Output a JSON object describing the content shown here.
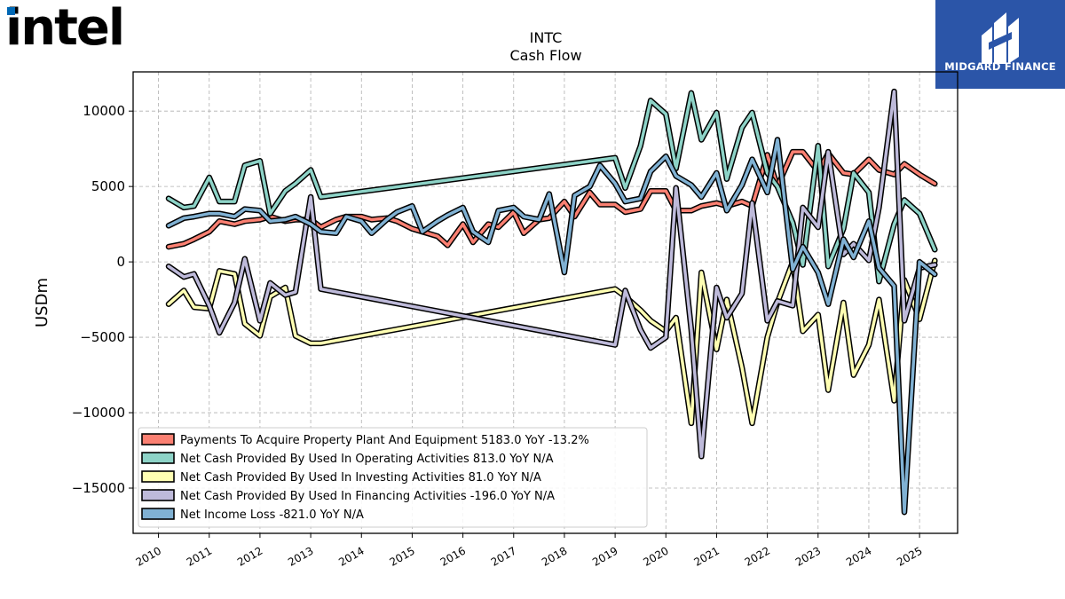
{
  "brand": {
    "name": "intel",
    "accent": "#0068b5"
  },
  "publisher": {
    "name": "MIDGARD FINANCE",
    "bg": "#2b55a8"
  },
  "chart_data": {
    "type": "line",
    "title": "INTC",
    "subtitle": "Cash Flow",
    "ylabel": "USDm",
    "xlabel": "",
    "xlim": [
      2009.5,
      2025.75
    ],
    "ylim": [
      -18000,
      12600
    ],
    "yticks": [
      10000,
      5000,
      0,
      -5000,
      -10000,
      -15000
    ],
    "ytick_labels": [
      "10000",
      "5000",
      "0",
      "−5000",
      "−10000",
      "−15000"
    ],
    "xticks": [
      2010,
      2011,
      2012,
      2013,
      2014,
      2015,
      2016,
      2017,
      2018,
      2019,
      2020,
      2021,
      2022,
      2023,
      2024,
      2025
    ],
    "xtick_labels": [
      "2010",
      "2011",
      "2012",
      "2013",
      "2014",
      "2015",
      "2016",
      "2017",
      "2018",
      "2019",
      "2020",
      "2021",
      "2022",
      "2023",
      "2024",
      "2025"
    ],
    "grid": true,
    "legend_position": "lower-left",
    "series": [
      {
        "name": "Payments To Acquire Property Plant And Equipment",
        "legend": "Payments To Acquire Property Plant And Equipment  5183.0 YoY -13.2%",
        "color": "#fb8072",
        "points": [
          [
            2010.2,
            1000
          ],
          [
            2010.5,
            1200
          ],
          [
            2010.7,
            1500
          ],
          [
            2011.0,
            2000
          ],
          [
            2011.2,
            2700
          ],
          [
            2011.5,
            2500
          ],
          [
            2011.7,
            2700
          ],
          [
            2012.0,
            2800
          ],
          [
            2012.2,
            3000
          ],
          [
            2012.5,
            2700
          ],
          [
            2012.7,
            2800
          ],
          [
            2013.0,
            2800
          ],
          [
            2013.2,
            2300
          ],
          [
            2013.5,
            2800
          ],
          [
            2013.7,
            3000
          ],
          [
            2014.0,
            3000
          ],
          [
            2014.2,
            2800
          ],
          [
            2014.5,
            2900
          ],
          [
            2014.7,
            2700
          ],
          [
            2015.0,
            2200
          ],
          [
            2015.2,
            2000
          ],
          [
            2015.5,
            1700
          ],
          [
            2015.7,
            1100
          ],
          [
            2016.0,
            2500
          ],
          [
            2016.2,
            1300
          ],
          [
            2016.5,
            2500
          ],
          [
            2016.7,
            2300
          ],
          [
            2017.0,
            3300
          ],
          [
            2017.2,
            1900
          ],
          [
            2017.5,
            2800
          ],
          [
            2017.7,
            2900
          ],
          [
            2018.0,
            4000
          ],
          [
            2018.2,
            3000
          ],
          [
            2018.5,
            4600
          ],
          [
            2018.7,
            3800
          ],
          [
            2019.0,
            3800
          ],
          [
            2019.2,
            3300
          ],
          [
            2019.5,
            3500
          ],
          [
            2019.7,
            4700
          ],
          [
            2020.0,
            4700
          ],
          [
            2020.2,
            3400
          ],
          [
            2020.5,
            3400
          ],
          [
            2020.7,
            3700
          ],
          [
            2021.0,
            3900
          ],
          [
            2021.2,
            3700
          ],
          [
            2021.5,
            4000
          ],
          [
            2021.7,
            3700
          ],
          [
            2022.0,
            7100
          ],
          [
            2022.2,
            5000
          ],
          [
            2022.5,
            7300
          ],
          [
            2022.7,
            7300
          ],
          [
            2023.0,
            6000
          ],
          [
            2023.2,
            7200
          ],
          [
            2023.5,
            5900
          ],
          [
            2023.7,
            5800
          ],
          [
            2024.0,
            6800
          ],
          [
            2024.2,
            6100
          ],
          [
            2024.5,
            5800
          ],
          [
            2024.7,
            6500
          ],
          [
            2025.0,
            5800
          ],
          [
            2025.3,
            5183
          ]
        ]
      },
      {
        "name": "Net Cash Provided By Used In Operating Activities",
        "legend": "Net Cash Provided By Used In Operating Activities  813.0 YoY N/A",
        "color": "#8dd3c7",
        "points": [
          [
            2010.2,
            4200
          ],
          [
            2010.5,
            3600
          ],
          [
            2010.7,
            3700
          ],
          [
            2011.0,
            5600
          ],
          [
            2011.2,
            4000
          ],
          [
            2011.5,
            4000
          ],
          [
            2011.7,
            6400
          ],
          [
            2012.0,
            6700
          ],
          [
            2012.2,
            3200
          ],
          [
            2012.5,
            4700
          ],
          [
            2012.7,
            5200
          ],
          [
            2013.0,
            6100
          ],
          [
            2013.2,
            4300
          ],
          [
            2019.0,
            6900
          ],
          [
            2019.2,
            4900
          ],
          [
            2019.5,
            7700
          ],
          [
            2019.7,
            10700
          ],
          [
            2020.0,
            9800
          ],
          [
            2020.2,
            6200
          ],
          [
            2020.5,
            11200
          ],
          [
            2020.7,
            8100
          ],
          [
            2021.0,
            9900
          ],
          [
            2021.2,
            5500
          ],
          [
            2021.5,
            8900
          ],
          [
            2021.7,
            9900
          ],
          [
            2022.0,
            5900
          ],
          [
            2022.2,
            5000
          ],
          [
            2022.5,
            2600
          ],
          [
            2022.7,
            -200
          ],
          [
            2023.0,
            7700
          ],
          [
            2023.2,
            -300
          ],
          [
            2023.5,
            2200
          ],
          [
            2023.7,
            5900
          ],
          [
            2024.0,
            4600
          ],
          [
            2024.2,
            -1300
          ],
          [
            2024.5,
            2500
          ],
          [
            2024.7,
            4100
          ],
          [
            2025.0,
            3200
          ],
          [
            2025.3,
            813
          ]
        ]
      },
      {
        "name": "Net Cash Provided By Used In Investing Activities",
        "legend": "Net Cash Provided By Used In Investing Activities  81.0 YoY N/A",
        "color": "#ffffb3",
        "points": [
          [
            2010.2,
            -2800
          ],
          [
            2010.5,
            -1900
          ],
          [
            2010.7,
            -3000
          ],
          [
            2011.0,
            -3100
          ],
          [
            2011.2,
            -600
          ],
          [
            2011.5,
            -800
          ],
          [
            2011.7,
            -4100
          ],
          [
            2012.0,
            -4900
          ],
          [
            2012.2,
            -2300
          ],
          [
            2012.5,
            -1700
          ],
          [
            2012.7,
            -4900
          ],
          [
            2013.0,
            -5400
          ],
          [
            2013.2,
            -5400
          ],
          [
            2019.0,
            -1800
          ],
          [
            2019.2,
            -2300
          ],
          [
            2019.5,
            -3200
          ],
          [
            2019.7,
            -3900
          ],
          [
            2020.0,
            -4600
          ],
          [
            2020.2,
            -3700
          ],
          [
            2020.5,
            -10700
          ],
          [
            2020.7,
            -700
          ],
          [
            2021.0,
            -5800
          ],
          [
            2021.2,
            -2500
          ],
          [
            2021.5,
            -7000
          ],
          [
            2021.7,
            -10700
          ],
          [
            2022.0,
            -5000
          ],
          [
            2022.2,
            -2700
          ],
          [
            2022.5,
            0
          ],
          [
            2022.7,
            -4600
          ],
          [
            2023.0,
            -3500
          ],
          [
            2023.2,
            -8500
          ],
          [
            2023.5,
            -2700
          ],
          [
            2023.7,
            -7500
          ],
          [
            2024.0,
            -5500
          ],
          [
            2024.2,
            -2500
          ],
          [
            2024.5,
            -9200
          ],
          [
            2024.7,
            -1200
          ],
          [
            2025.0,
            -3800
          ],
          [
            2025.3,
            81
          ]
        ]
      },
      {
        "name": "Net Cash Provided By Used In Financing Activities",
        "legend": "Net Cash Provided By Used In Financing Activities  -196.0 YoY N/A",
        "color": "#bebada",
        "points": [
          [
            2010.2,
            -300
          ],
          [
            2010.5,
            -1000
          ],
          [
            2010.7,
            -800
          ],
          [
            2011.0,
            -2900
          ],
          [
            2011.2,
            -4700
          ],
          [
            2011.5,
            -2700
          ],
          [
            2011.7,
            200
          ],
          [
            2012.0,
            -3900
          ],
          [
            2012.2,
            -1400
          ],
          [
            2012.5,
            -2200
          ],
          [
            2012.7,
            -2000
          ],
          [
            2013.0,
            4300
          ],
          [
            2013.2,
            -1800
          ],
          [
            2019.0,
            -5500
          ],
          [
            2019.2,
            -1900
          ],
          [
            2019.5,
            -4500
          ],
          [
            2019.7,
            -5700
          ],
          [
            2020.0,
            -5000
          ],
          [
            2020.2,
            4900
          ],
          [
            2020.5,
            -4500
          ],
          [
            2020.7,
            -12900
          ],
          [
            2021.0,
            -1700
          ],
          [
            2021.2,
            -3700
          ],
          [
            2021.5,
            -2100
          ],
          [
            2021.7,
            3900
          ],
          [
            2022.0,
            -3900
          ],
          [
            2022.2,
            -2600
          ],
          [
            2022.5,
            -2900
          ],
          [
            2022.7,
            3600
          ],
          [
            2023.0,
            2300
          ],
          [
            2023.2,
            7300
          ],
          [
            2023.5,
            500
          ],
          [
            2023.7,
            1200
          ],
          [
            2024.0,
            100
          ],
          [
            2024.2,
            3600
          ],
          [
            2024.5,
            11300
          ],
          [
            2024.7,
            -3900
          ],
          [
            2025.0,
            -400
          ],
          [
            2025.3,
            -196
          ]
        ]
      },
      {
        "name": "Net Income Loss",
        "legend": "Net Income Loss  -821.0 YoY N/A",
        "color": "#80b1d3",
        "points": [
          [
            2010.2,
            2400
          ],
          [
            2010.5,
            2900
          ],
          [
            2010.7,
            3000
          ],
          [
            2011.0,
            3200
          ],
          [
            2011.2,
            3200
          ],
          [
            2011.5,
            3000
          ],
          [
            2011.7,
            3500
          ],
          [
            2012.0,
            3400
          ],
          [
            2012.2,
            2700
          ],
          [
            2012.5,
            2800
          ],
          [
            2012.7,
            3000
          ],
          [
            2013.0,
            2500
          ],
          [
            2013.2,
            2000
          ],
          [
            2013.5,
            1900
          ],
          [
            2013.7,
            3000
          ],
          [
            2014.0,
            2700
          ],
          [
            2014.2,
            1900
          ],
          [
            2014.5,
            2800
          ],
          [
            2014.7,
            3300
          ],
          [
            2015.0,
            3700
          ],
          [
            2015.2,
            2000
          ],
          [
            2015.5,
            2700
          ],
          [
            2015.7,
            3100
          ],
          [
            2016.0,
            3600
          ],
          [
            2016.2,
            2000
          ],
          [
            2016.5,
            1300
          ],
          [
            2016.7,
            3400
          ],
          [
            2017.0,
            3600
          ],
          [
            2017.2,
            3000
          ],
          [
            2017.5,
            2800
          ],
          [
            2017.7,
            4500
          ],
          [
            2018.0,
            -700
          ],
          [
            2018.2,
            4400
          ],
          [
            2018.5,
            5000
          ],
          [
            2018.7,
            6400
          ],
          [
            2019.0,
            5200
          ],
          [
            2019.2,
            4000
          ],
          [
            2019.5,
            4200
          ],
          [
            2019.7,
            6000
          ],
          [
            2020.0,
            7000
          ],
          [
            2020.2,
            5700
          ],
          [
            2020.5,
            5100
          ],
          [
            2020.7,
            4300
          ],
          [
            2021.0,
            5900
          ],
          [
            2021.2,
            3400
          ],
          [
            2021.5,
            5100
          ],
          [
            2021.7,
            6800
          ],
          [
            2022.0,
            4600
          ],
          [
            2022.2,
            8100
          ],
          [
            2022.5,
            -500
          ],
          [
            2022.7,
            1000
          ],
          [
            2023.0,
            -700
          ],
          [
            2023.2,
            -2800
          ],
          [
            2023.5,
            1500
          ],
          [
            2023.7,
            300
          ],
          [
            2024.0,
            2700
          ],
          [
            2024.2,
            -400
          ],
          [
            2024.5,
            -1600
          ],
          [
            2024.7,
            -16600
          ],
          [
            2025.0,
            0
          ],
          [
            2025.3,
            -821
          ]
        ]
      }
    ]
  }
}
